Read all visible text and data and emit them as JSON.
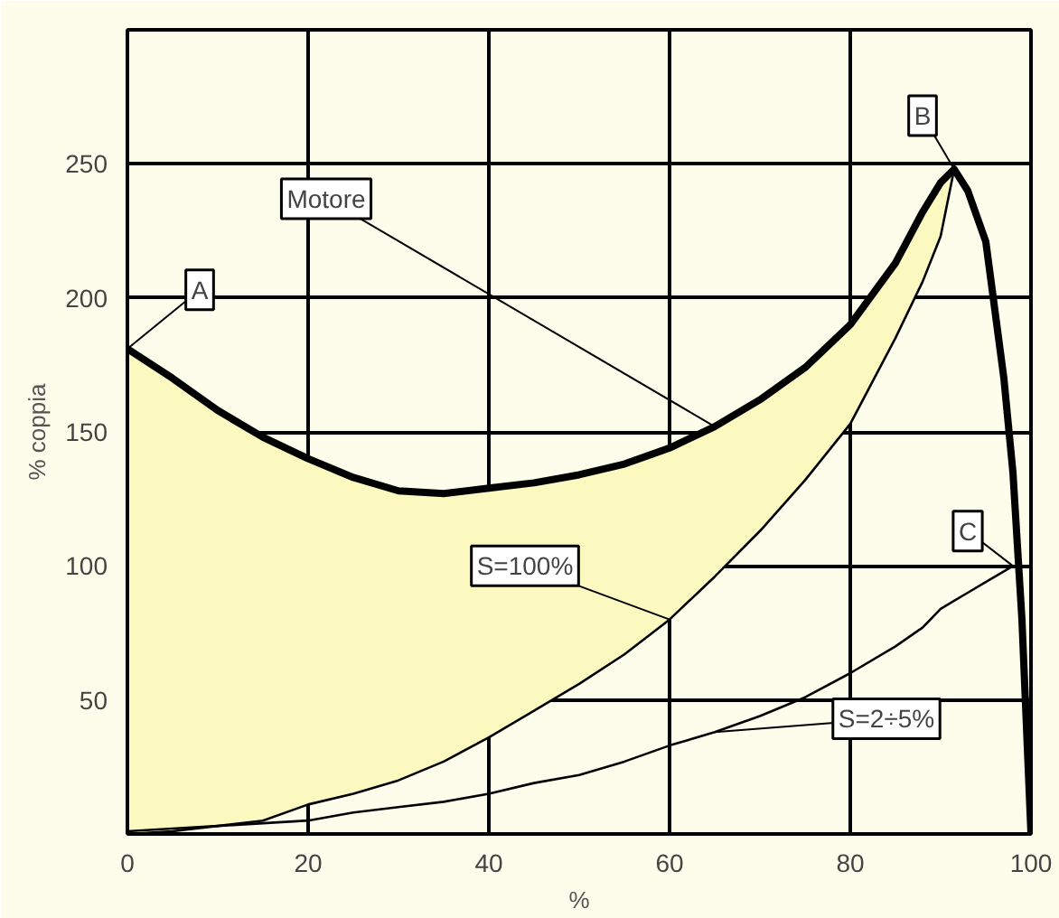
{
  "chart_data": {
    "type": "line",
    "xlabel": "%",
    "ylabel": "% coppia",
    "x": [
      0,
      5,
      10,
      15,
      20,
      25,
      30,
      35,
      40,
      45,
      50,
      55,
      60,
      65,
      70,
      75,
      80,
      85,
      88,
      90,
      91.5,
      93,
      95,
      97,
      98,
      99,
      100
    ],
    "series": [
      {
        "name": "Motore",
        "color": "#000000",
        "values": [
          181,
          170,
          158,
          148,
          140,
          133,
          128,
          127,
          129,
          131,
          134,
          138,
          144,
          152,
          162,
          174,
          190,
          213,
          232,
          243,
          248,
          240,
          221,
          170,
          135,
          80,
          0
        ],
        "upper": [
          181,
          170,
          158,
          148,
          140,
          133,
          128,
          127,
          129,
          131,
          134,
          138,
          144,
          152,
          162,
          174,
          190,
          213,
          232,
          243,
          248,
          null,
          null,
          null,
          null,
          null,
          null
        ],
        "lower": [
          0,
          1,
          3,
          5,
          11,
          15,
          20,
          27,
          36,
          46,
          56,
          67,
          80,
          96,
          113,
          132,
          153,
          185,
          206,
          223,
          248,
          null,
          null,
          null,
          null,
          null,
          null
        ]
      },
      {
        "name": "S=100%",
        "color": "#000000",
        "values": [
          0,
          1,
          3,
          5,
          11,
          15,
          20,
          27,
          36,
          46,
          56,
          67,
          80,
          96,
          113,
          132,
          153,
          185,
          206,
          223,
          248,
          null,
          null,
          null,
          null,
          null,
          null
        ]
      },
      {
        "name": "S=2÷5%",
        "color": "#000000",
        "values": [
          1,
          2,
          3,
          4,
          5,
          8,
          10,
          12,
          15,
          19,
          22,
          27,
          33,
          38,
          44,
          51,
          60,
          70,
          77,
          84,
          87,
          90,
          94,
          98,
          100,
          null,
          null
        ]
      }
    ],
    "annotations": [
      {
        "text": "A",
        "x": 0,
        "y": 181
      },
      {
        "text": "B",
        "x": 91.5,
        "y": 248
      },
      {
        "text": "C",
        "x": 98,
        "y": 100
      }
    ],
    "xlim": [
      0,
      100
    ],
    "ylim": [
      0,
      300
    ],
    "xticks": [
      0,
      20,
      40,
      60,
      80,
      100
    ],
    "yticks": [
      50,
      100,
      150,
      200,
      250
    ],
    "grid": true,
    "marker": "none",
    "line_style": "solid"
  }
}
